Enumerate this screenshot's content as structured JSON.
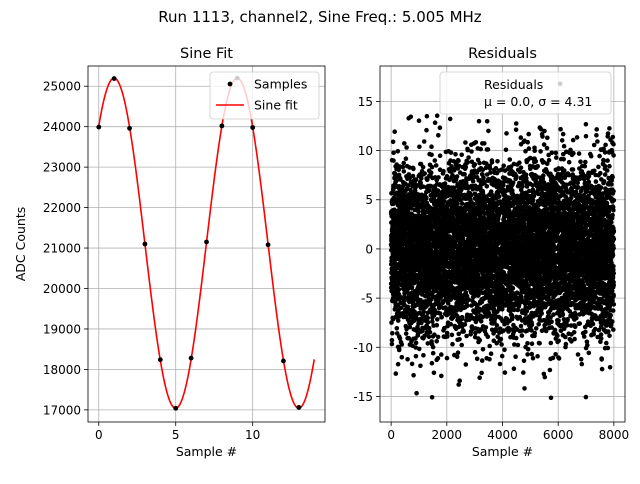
{
  "figure_title": "Run 1113, channel2, Sine Freq.: 5.005 MHz",
  "chart_data": [
    {
      "type": "scatter+line",
      "title": "Sine Fit",
      "xlabel": "Sample #",
      "ylabel": "ADC Counts",
      "xlim": [
        -0.7,
        14.7
      ],
      "ylim": [
        16700,
        25500
      ],
      "xticks": [
        0,
        5,
        10
      ],
      "yticks": [
        17000,
        18000,
        19000,
        20000,
        21000,
        22000,
        23000,
        24000,
        25000
      ],
      "grid": true,
      "legend_position": "top-right",
      "fit": {
        "offset": 21120,
        "amplitude": 4080,
        "period": 8,
        "phase": 0.79,
        "x_range": [
          0,
          14
        ]
      },
      "series": [
        {
          "name": "Samples",
          "kind": "scatter",
          "color": "#000000",
          "x": [
            0,
            1,
            2,
            3,
            4,
            5,
            6,
            7,
            8,
            9,
            10,
            11,
            12,
            13
          ],
          "y": [
            23990,
            25190,
            23960,
            21100,
            18240,
            17040,
            18280,
            21150,
            24020,
            25200,
            23980,
            21080,
            18210,
            17060
          ]
        },
        {
          "name": "Sine fit",
          "kind": "line",
          "color": "#ff0000"
        }
      ]
    },
    {
      "type": "scatter",
      "title": "Residuals",
      "xlabel": "Sample #",
      "ylabel": "",
      "xlim": [
        -400,
        8400
      ],
      "ylim": [
        -17.6,
        18.6
      ],
      "xticks": [
        0,
        2000,
        4000,
        6000,
        8000
      ],
      "yticks": [
        -15,
        -10,
        -5,
        0,
        5,
        10,
        15
      ],
      "grid": true,
      "legend_position": "top-right",
      "legend_lines": [
        "Residuals",
        "μ = 0.0, σ = 4.31"
      ],
      "mean": 0.0,
      "std": 4.31,
      "n_points": 8000,
      "color": "#000000"
    }
  ]
}
